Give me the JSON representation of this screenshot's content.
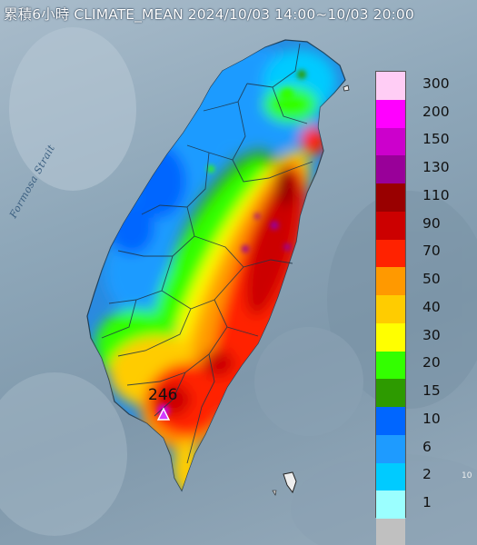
{
  "header": {
    "title": "累積6小時 CLIMATE_MEAN 2024/10/03 14:00~10/03 20:00"
  },
  "map": {
    "strait_label": "Formosa Strait",
    "max_value_label": "246",
    "max_marker_icon": "triangle-marker-icon",
    "small_label": "10"
  },
  "legend": {
    "unit_note": "",
    "colors": [
      "#ffcdf5",
      "#ff00ff",
      "#cc00cc",
      "#990099",
      "#990000",
      "#cc0000",
      "#ff2200",
      "#ff9900",
      "#ffcc00",
      "#ffff00",
      "#33ff00",
      "#2d9a00",
      "#0066ff",
      "#1e9bff",
      "#00cbff",
      "#9bffff",
      "#c0c0c0"
    ],
    "ticks": [
      "300",
      "200",
      "150",
      "130",
      "110",
      "90",
      "70",
      "50",
      "40",
      "30",
      "20",
      "15",
      "10",
      "6",
      "2",
      "1"
    ]
  }
}
